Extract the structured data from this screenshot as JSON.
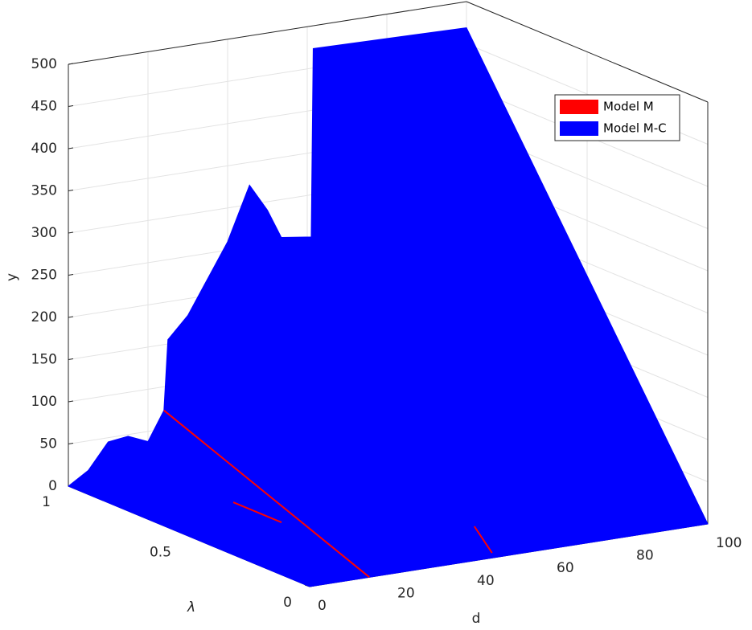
{
  "chart_data": {
    "type": "surface",
    "xlabel": "d",
    "ylabel": "y",
    "zlabel": "λ",
    "xlim": [
      0,
      100
    ],
    "xticks": [
      0,
      20,
      40,
      60,
      80,
      100
    ],
    "zlim": [
      0,
      1
    ],
    "zticks": [
      0,
      0.5,
      1
    ],
    "ylim": [
      0,
      500
    ],
    "yticks": [
      0,
      50,
      100,
      150,
      200,
      250,
      300,
      350,
      400,
      450,
      500
    ],
    "grid": true,
    "legend": "upper right",
    "series": [
      {
        "name": "Model M",
        "color": "#ff0000",
        "x": [
          24,
          15,
          null,
          23,
          23,
          null,
          56.4,
          48
        ],
        "z": [
          1,
          0,
          null,
          0.696,
          0.496,
          null,
          0.248,
          0.036
        ],
        "values": [
          72,
          0,
          null,
          0,
          0,
          null,
          0,
          0
        ]
      },
      {
        "name": "Model M-C",
        "color": "#0000ff",
        "x": [
          0,
          5,
          10,
          15,
          20,
          24,
          25,
          30,
          35,
          40,
          45.5,
          50,
          53.5,
          59.6,
          61,
          61.5,
          100
        ],
        "z": [
          1,
          1,
          1,
          1,
          1,
          1,
          1,
          1,
          1,
          1,
          1,
          1,
          1,
          1,
          1,
          1,
          1
        ],
        "values": [
          0,
          15,
          45,
          48,
          38,
          72,
          155,
          180,
          220,
          260,
          323,
          290,
          255,
          251,
          250,
          473,
          469
        ]
      }
    ]
  }
}
